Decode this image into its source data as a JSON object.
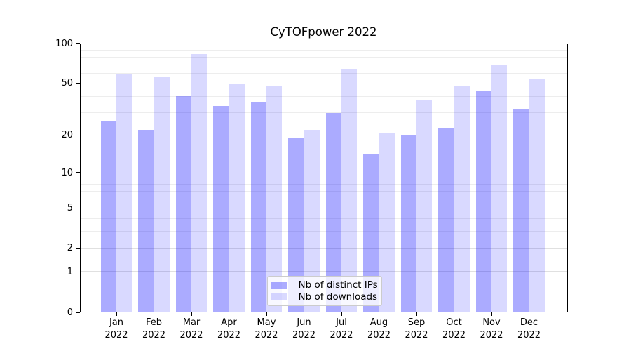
{
  "figure": {
    "title": "CyTOFpower 2022"
  },
  "chart_data": {
    "type": "bar",
    "title": "CyTOFpower 2022",
    "categories": [
      "Jan",
      "Feb",
      "Mar",
      "Apr",
      "May",
      "Jun",
      "Jul",
      "Aug",
      "Sep",
      "Oct",
      "Nov",
      "Dec"
    ],
    "x_year": "2022",
    "series": [
      {
        "name": "Nb of distinct IPs",
        "color": "rgba(0,0,255,0.33)",
        "values": [
          26,
          22,
          40,
          34,
          36,
          19,
          30,
          14,
          20,
          23,
          44,
          32
        ]
      },
      {
        "name": "Nb of downloads",
        "color": "rgba(0,0,255,0.15)",
        "values": [
          60,
          56,
          84,
          50,
          48,
          22,
          65,
          21,
          38,
          48,
          70,
          54
        ]
      }
    ],
    "xlabel": "",
    "ylabel": "",
    "ylim": [
      0,
      100
    ],
    "scale": "log1p",
    "yticks": [
      0,
      1,
      2,
      5,
      10,
      20,
      50,
      100
    ],
    "minor_gridlines": [
      3,
      4,
      6,
      7,
      8,
      9,
      30,
      40,
      60,
      70,
      80,
      90
    ],
    "grid": true,
    "legend_position": "lower center",
    "colors": {
      "dark_bar": "rgba(0,0,255,0.33)",
      "light_bar": "rgba(0,0,255,0.15)",
      "grid_major": "#e0e0e0",
      "grid_minor": "#ededed",
      "spine": "#000000",
      "legend_border": "#cccccc",
      "legend_bg": "rgba(255,255,255,0.8)"
    }
  }
}
